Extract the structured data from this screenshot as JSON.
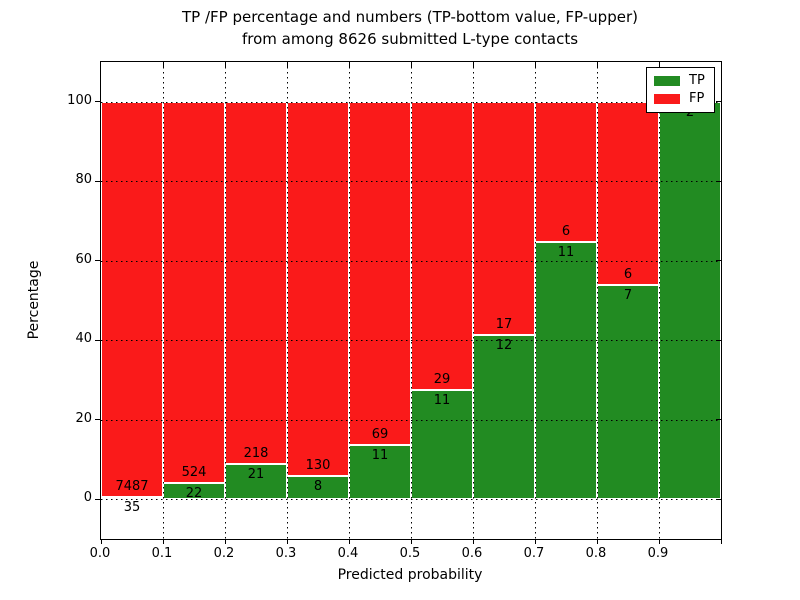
{
  "figure": {
    "title_line1": "TP /FP percentage and numbers (TP-bottom value, FP-upper)",
    "title_line2": "from among 8626 submitted L-type contacts"
  },
  "axes": {
    "ylabel": "Percentage",
    "xlabel": "Predicted probability",
    "ytick_labels": [
      "0",
      "20",
      "40",
      "60",
      "80",
      "100"
    ],
    "ytick_values": [
      0,
      20,
      40,
      60,
      80,
      100
    ],
    "xtick_labels": [
      "0.0",
      "0.1",
      "0.2",
      "0.3",
      "0.4",
      "0.5",
      "0.6",
      "0.7",
      "0.8",
      "0.9"
    ],
    "xtick_values": [
      0,
      0.1,
      0.2,
      0.3,
      0.4,
      0.5,
      0.6,
      0.7,
      0.8,
      0.9
    ],
    "ylim": [
      -10,
      110
    ],
    "xlim": [
      0,
      1
    ],
    "grid_style": "dotted"
  },
  "legend": {
    "position": "upper-right",
    "items": [
      {
        "label": "TP",
        "color": "#228b22"
      },
      {
        "label": "FP",
        "color": "#fa1a1a"
      }
    ]
  },
  "chart_data": {
    "type": "bar",
    "stacked": true,
    "normalized": "each 0.1-wide bin stacked to 100%",
    "title": "TP /FP percentage and numbers (TP-bottom value, FP-upper) from among 8626 submitted L-type contacts",
    "xlabel": "Predicted probability",
    "ylabel": "Percentage",
    "ylim": [
      -10,
      110
    ],
    "xlim": [
      0,
      1
    ],
    "total_contacts": 8626,
    "bin_width": 0.1,
    "categories": [
      "0.0-0.1",
      "0.1-0.2",
      "0.2-0.3",
      "0.3-0.4",
      "0.4-0.5",
      "0.5-0.6",
      "0.6-0.7",
      "0.7-0.8",
      "0.8-0.9",
      "0.9-1.0"
    ],
    "series": [
      {
        "name": "TP",
        "position": "bottom",
        "color": "#228b22",
        "counts": [
          35,
          22,
          21,
          8,
          11,
          11,
          12,
          11,
          7,
          2
        ]
      },
      {
        "name": "FP",
        "position": "top",
        "color": "#fa1a1a",
        "counts": [
          7487,
          524,
          218,
          130,
          69,
          29,
          17,
          6,
          6,
          0
        ]
      }
    ],
    "tp_percent": [
      0.47,
      4.03,
      8.79,
      5.8,
      13.75,
      27.5,
      41.38,
      64.71,
      53.85,
      100
    ],
    "legend_entries": [
      "TP",
      "FP"
    ],
    "grid": "on",
    "legend_position": "upper right"
  }
}
